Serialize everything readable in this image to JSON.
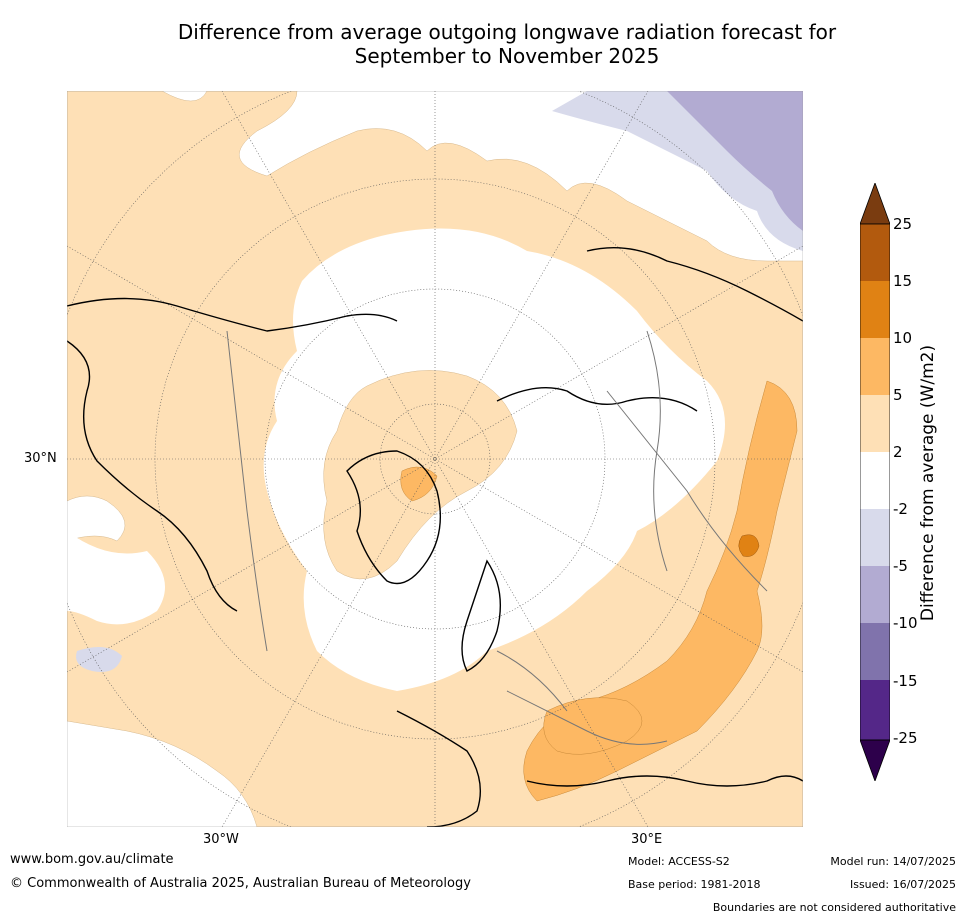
{
  "title_line1": "Difference from average outgoing longwave radiation forecast for",
  "title_line2": "September to November 2025",
  "map": {
    "lat_label": "30°N",
    "lon_labels": [
      "30°W",
      "30°E"
    ]
  },
  "legend": {
    "label": "Difference from average (W/m2)",
    "ticks": [
      "25",
      "15",
      "10",
      "5",
      "2",
      "-2",
      "-5",
      "-10",
      "-15",
      "-25"
    ],
    "colors": {
      "gt25": "#7a3c10",
      "15_25": "#b25a0e",
      "10_15": "#e08214",
      "5_10": "#fdb863",
      "2_5": "#fee0b6",
      "neutral": "#ffffff",
      "m2_m5": "#d8daeb",
      "m5_m10": "#b2abd2",
      "m10_m15": "#8073ac",
      "m15_m25": "#542788",
      "lt_m25": "#2d004b"
    }
  },
  "footer": {
    "website": "www.bom.gov.au/climate",
    "copyright": "© Commonwealth of Australia 2025, Australian Bureau of Meteorology",
    "model": "Model: ACCESS-S2",
    "base_period": "Base period: 1981-2018",
    "model_run": "Model run: 14/07/2025",
    "issued": "Issued: 16/07/2025",
    "disclaimer": "Boundaries are not considered authoritative"
  }
}
